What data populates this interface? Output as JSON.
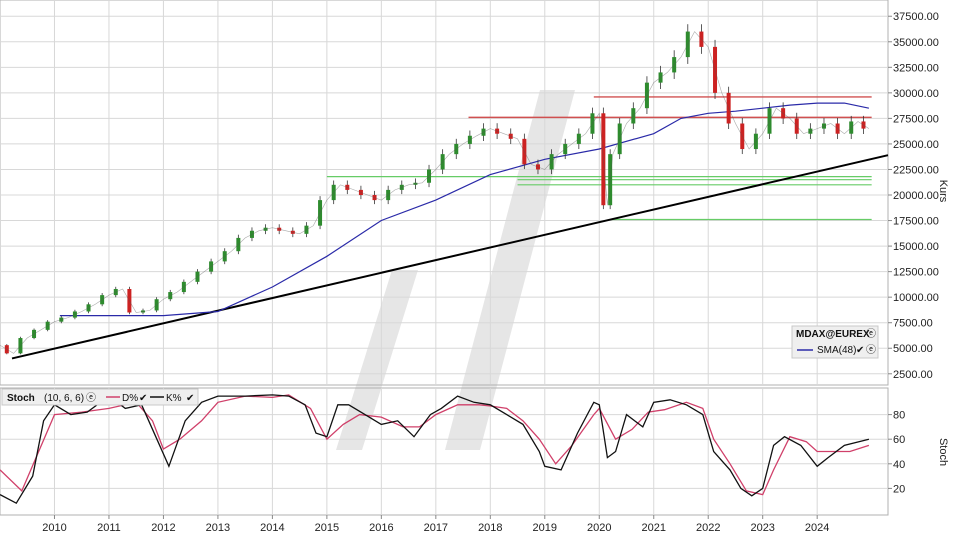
{
  "chart_data": {
    "type": "candlestick",
    "instrument": "MDAX@EUREX",
    "y_axis_title": "Kurs",
    "ylim": [
      1500,
      38600
    ],
    "y_ticks": [
      "2500.00",
      "5000.00",
      "7500.00",
      "10000.00",
      "12500.00",
      "15000.00",
      "17500.00",
      "20000.00",
      "22500.00",
      "25000.00",
      "27500.00",
      "30000.00",
      "32500.00",
      "35000.00",
      "37500.00"
    ],
    "x_ticks": [
      "2010",
      "2011",
      "2012",
      "2013",
      "2014",
      "2015",
      "2016",
      "2017",
      "2018",
      "2019",
      "2020",
      "2021",
      "2022",
      "2023",
      "2024"
    ],
    "xlim": [
      2009.0,
      2025.3
    ],
    "series": [
      {
        "name": "Kurs",
        "color": "#2e8b2e",
        "down_color": "#cc2222",
        "x": [
          2009.0,
          2009.25,
          2009.5,
          2009.75,
          2010.0,
          2010.25,
          2010.5,
          2010.75,
          2011.0,
          2011.25,
          2011.5,
          2011.75,
          2012.0,
          2012.25,
          2012.5,
          2012.75,
          2013.0,
          2013.25,
          2013.5,
          2013.75,
          2014.0,
          2014.25,
          2014.5,
          2014.75,
          2015.0,
          2015.25,
          2015.5,
          2015.75,
          2016.0,
          2016.25,
          2016.5,
          2016.75,
          2017.0,
          2017.25,
          2017.5,
          2017.75,
          2018.0,
          2018.25,
          2018.5,
          2018.75,
          2019.0,
          2019.25,
          2019.5,
          2019.75,
          2020.0,
          2020.15,
          2020.25,
          2020.5,
          2020.75,
          2021.0,
          2021.25,
          2021.5,
          2021.75,
          2022.0,
          2022.25,
          2022.5,
          2022.75,
          2023.0,
          2023.25,
          2023.5,
          2023.75,
          2024.0,
          2024.25,
          2024.5,
          2024.75,
          2024.95
        ],
        "values": [
          5300,
          4500,
          6000,
          6800,
          7600,
          8000,
          8600,
          9300,
          10200,
          10800,
          8500,
          8700,
          9800,
          10500,
          11500,
          12500,
          13500,
          14500,
          15800,
          16500,
          16800,
          16500,
          16200,
          17000,
          19500,
          21000,
          20500,
          20000,
          19500,
          20500,
          21000,
          21200,
          22500,
          24000,
          25000,
          25800,
          26500,
          26000,
          25500,
          23000,
          22500,
          24000,
          25000,
          26000,
          28000,
          19000,
          24000,
          27000,
          28500,
          31000,
          32000,
          33500,
          36000,
          34500,
          30000,
          27000,
          24500,
          26000,
          28500,
          27500,
          26000,
          26500,
          27000,
          26000,
          27200,
          26500
        ]
      },
      {
        "name": "SMA(48)",
        "color": "#2a2aa8",
        "x": [
          2010.1,
          2011.0,
          2012.0,
          2013.0,
          2014.0,
          2015.0,
          2016.0,
          2017.0,
          2018.0,
          2019.0,
          2020.0,
          2021.0,
          2021.5,
          2022.0,
          2022.5,
          2023.0,
          2023.5,
          2024.0,
          2024.5,
          2024.95
        ],
        "values": [
          8200,
          8200,
          8200,
          8600,
          11000,
          14000,
          17500,
          19500,
          22000,
          23500,
          24500,
          26000,
          27500,
          28000,
          28200,
          28500,
          28800,
          29000,
          29000,
          28500
        ]
      },
      {
        "name": "%D",
        "color": "#d0406a",
        "x": [
          2009.0,
          2009.4,
          2010.0,
          2010.5,
          2011.0,
          2011.5,
          2011.8,
          2012.0,
          2012.3,
          2012.7,
          2013.0,
          2013.5,
          2014.0,
          2014.3,
          2014.7,
          2015.0,
          2015.3,
          2015.6,
          2016.0,
          2016.4,
          2016.7,
          2017.0,
          2017.4,
          2017.8,
          2018.0,
          2018.3,
          2018.6,
          2018.9,
          2019.2,
          2019.5,
          2019.9,
          2020.0,
          2020.3,
          2020.6,
          2020.9,
          2021.2,
          2021.6,
          2021.9,
          2022.1,
          2022.4,
          2022.7,
          2023.0,
          2023.2,
          2023.5,
          2023.8,
          2024.0,
          2024.3,
          2024.6,
          2024.95
        ],
        "values": [
          35,
          18,
          80,
          82,
          85,
          90,
          75,
          52,
          60,
          75,
          90,
          95,
          94,
          96,
          85,
          60,
          72,
          80,
          78,
          70,
          70,
          80,
          88,
          88,
          87,
          85,
          75,
          60,
          40,
          55,
          80,
          85,
          60,
          68,
          82,
          84,
          90,
          85,
          60,
          40,
          18,
          15,
          35,
          62,
          58,
          50,
          50,
          50,
          55
        ]
      },
      {
        "name": "K%",
        "color": "#111111",
        "x": [
          2009.0,
          2009.3,
          2009.6,
          2009.8,
          2010.0,
          2010.3,
          2010.6,
          2011.0,
          2011.3,
          2011.6,
          2011.9,
          2012.1,
          2012.4,
          2012.7,
          2013.0,
          2013.5,
          2014.0,
          2014.3,
          2014.6,
          2014.8,
          2015.0,
          2015.2,
          2015.4,
          2015.7,
          2016.0,
          2016.3,
          2016.6,
          2016.9,
          2017.1,
          2017.4,
          2017.7,
          2018.0,
          2018.3,
          2018.6,
          2018.9,
          2019.0,
          2019.3,
          2019.6,
          2019.9,
          2020.0,
          2020.15,
          2020.3,
          2020.5,
          2020.8,
          2021.0,
          2021.3,
          2021.6,
          2021.9,
          2022.1,
          2022.4,
          2022.6,
          2022.8,
          2023.0,
          2023.2,
          2023.4,
          2023.7,
          2024.0,
          2024.2,
          2024.5,
          2024.95
        ],
        "values": [
          15,
          8,
          30,
          75,
          88,
          80,
          82,
          95,
          85,
          88,
          58,
          38,
          75,
          90,
          95,
          95,
          96,
          95,
          88,
          65,
          62,
          88,
          88,
          80,
          72,
          75,
          62,
          80,
          85,
          95,
          90,
          88,
          80,
          72,
          50,
          38,
          35,
          65,
          90,
          88,
          45,
          50,
          80,
          70,
          90,
          92,
          88,
          80,
          50,
          35,
          20,
          14,
          20,
          55,
          62,
          55,
          38,
          45,
          55,
          60
        ]
      }
    ],
    "support_lines_green": [
      21800,
      21500,
      21000,
      17600
    ],
    "resistance_lines_red": [
      29600,
      27600
    ],
    "trendline": {
      "x": [
        2009.0,
        2025.3
      ],
      "values": [
        4000,
        23900
      ]
    },
    "panels": {
      "stoch": {
        "title": "Stoch",
        "params": "(10, 6, 6)",
        "y_axis_title": "Stoch",
        "ylim": [
          0,
          100
        ],
        "y_ticks": [
          "20",
          "40",
          "60",
          "80"
        ]
      }
    }
  },
  "legend": {
    "instrument": "MDAX@EUREX",
    "sma_label": "SMA(48)"
  },
  "stoch_legend": {
    "title": "Stoch",
    "params": "(10, 6, 6)",
    "d_label": "D%",
    "k_label": "K%",
    "check": "✔",
    "settings": "ⓔ"
  },
  "icons": {
    "check": "✔",
    "settings": "ⓔ"
  },
  "colors": {
    "grid": "#d8d8d8",
    "up": "#2e8b2e",
    "down": "#cc2222",
    "sma": "#2a2aa8",
    "d": "#d0406a",
    "k": "#111111",
    "support": "#66cc66",
    "resistance": "#d05050",
    "trendline": "#000000",
    "watermark": "#e6e6e6"
  }
}
